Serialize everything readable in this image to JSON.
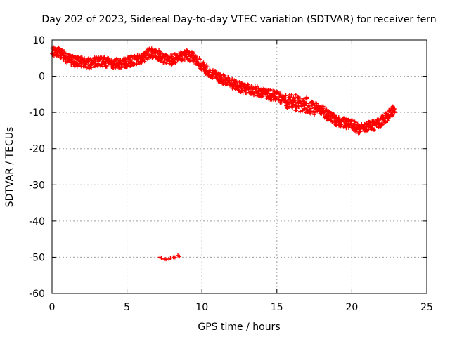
{
  "chart_data": {
    "type": "scatter",
    "title": "Day 202 of 2023, Sidereal Day-to-day VTEC variation (SDTVAR) for receiver fern",
    "xlabel": "GPS time / hours",
    "ylabel": "SDTVAR / TECUs",
    "xlim": [
      0,
      25
    ],
    "ylim": [
      -60,
      10
    ],
    "xticks": [
      0,
      5,
      10,
      15,
      20,
      25
    ],
    "yticks": [
      10,
      0,
      -10,
      -20,
      -30,
      -40,
      -50,
      -60
    ],
    "grid": true,
    "marker_color": "#ff0000",
    "series": [
      {
        "name": "SDTVAR",
        "band": [
          {
            "x": 0.0,
            "y": 7
          },
          {
            "x": 0.5,
            "y": 6.5
          },
          {
            "x": 1.0,
            "y": 5
          },
          {
            "x": 1.5,
            "y": 4
          },
          {
            "x": 2.0,
            "y": 4
          },
          {
            "x": 2.5,
            "y": 3.5
          },
          {
            "x": 3.0,
            "y": 4
          },
          {
            "x": 3.5,
            "y": 4
          },
          {
            "x": 4.0,
            "y": 3.5
          },
          {
            "x": 4.5,
            "y": 3.5
          },
          {
            "x": 5.0,
            "y": 4
          },
          {
            "x": 5.5,
            "y": 4.5
          },
          {
            "x": 6.0,
            "y": 5
          },
          {
            "x": 6.5,
            "y": 6.5
          },
          {
            "x": 7.0,
            "y": 6
          },
          {
            "x": 7.5,
            "y": 5
          },
          {
            "x": 8.0,
            "y": 4.5
          },
          {
            "x": 8.5,
            "y": 5.5
          },
          {
            "x": 9.0,
            "y": 6
          },
          {
            "x": 9.5,
            "y": 5
          },
          {
            "x": 10.0,
            "y": 3
          },
          {
            "x": 10.5,
            "y": 1
          },
          {
            "x": 11.0,
            "y": 0
          },
          {
            "x": 11.5,
            "y": -1
          },
          {
            "x": 12.0,
            "y": -2
          },
          {
            "x": 12.5,
            "y": -3
          },
          {
            "x": 13.0,
            "y": -3.5
          },
          {
            "x": 13.5,
            "y": -4
          },
          {
            "x": 14.0,
            "y": -4.5
          },
          {
            "x": 14.5,
            "y": -5
          },
          {
            "x": 15.0,
            "y": -5.5
          },
          {
            "x": 15.5,
            "y": -6.5
          },
          {
            "x": 16.0,
            "y": -7
          },
          {
            "x": 16.5,
            "y": -7.5
          },
          {
            "x": 17.0,
            "y": -8
          },
          {
            "x": 17.5,
            "y": -8.5
          },
          {
            "x": 18.0,
            "y": -9.5
          },
          {
            "x": 18.5,
            "y": -11
          },
          {
            "x": 19.0,
            "y": -12.5
          },
          {
            "x": 19.5,
            "y": -13
          },
          {
            "x": 20.0,
            "y": -13.5
          },
          {
            "x": 20.5,
            "y": -14.5
          },
          {
            "x": 21.0,
            "y": -14
          },
          {
            "x": 21.5,
            "y": -13.5
          },
          {
            "x": 22.0,
            "y": -12.5
          },
          {
            "x": 22.5,
            "y": -10.5
          },
          {
            "x": 22.9,
            "y": -9
          }
        ],
        "outliers": [
          {
            "x": 7.2,
            "y": -50
          },
          {
            "x": 7.5,
            "y": -50.5
          },
          {
            "x": 7.8,
            "y": -50.5
          },
          {
            "x": 8.1,
            "y": -50
          },
          {
            "x": 8.4,
            "y": -49.5
          }
        ]
      }
    ]
  }
}
